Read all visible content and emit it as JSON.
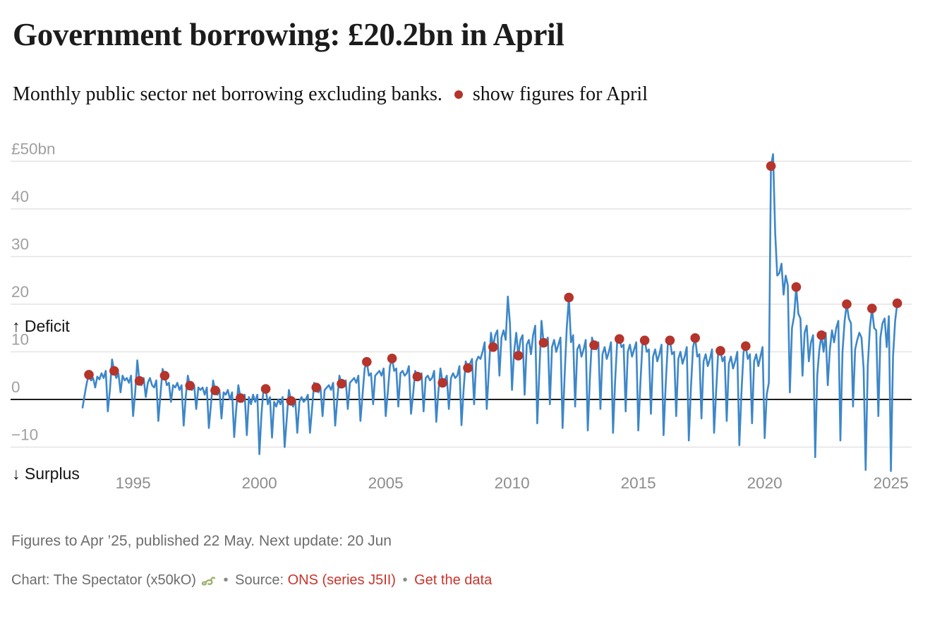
{
  "header": {
    "title": "Government borrowing: £20.2bn in April",
    "subtitle": "Monthly public sector net borrowing excluding banks.",
    "legend_dot_label": "show figures for April"
  },
  "chart_data": {
    "type": "line",
    "title": "Government borrowing: £20.2bn in April",
    "unit": "£bn",
    "grid": "horizontal",
    "legend_position": "in-subtitle",
    "xlim": [
      1993.0,
      2025.4
    ],
    "ylim": [
      -16,
      52
    ],
    "x_ticks": [
      1995,
      2000,
      2005,
      2010,
      2015,
      2020,
      2025
    ],
    "y_ticks": [
      {
        "value": 50,
        "label": "£50bn"
      },
      {
        "value": 40,
        "label": "40"
      },
      {
        "value": 30,
        "label": "30"
      },
      {
        "value": 20,
        "label": "20"
      },
      {
        "value": 10,
        "label": "10"
      },
      {
        "value": 0,
        "label": "0"
      },
      {
        "value": -10,
        "label": "−10"
      }
    ],
    "annotations": {
      "deficit": "↑ Deficit",
      "surplus": "↓ Surplus"
    },
    "monthly_series": {
      "name": "Monthly public sector net borrowing ex banks (£bn)",
      "start_year": 1993,
      "start_month": 1,
      "values": [
        -1.7,
        1.0,
        3.5,
        5.2,
        4.0,
        4.5,
        2.5,
        4.8,
        4.2,
        5.5,
        4.5,
        6.0,
        -2.5,
        2.0,
        8.4,
        6.0,
        4.5,
        5.5,
        1.5,
        5.0,
        4.0,
        4.5,
        3.5,
        5.0,
        -3.5,
        1.5,
        8.2,
        3.9,
        3.0,
        4.5,
        0.5,
        3.5,
        4.5,
        3.0,
        2.5,
        4.0,
        -4.5,
        1.0,
        6.4,
        5.0,
        3.0,
        3.5,
        -0.5,
        3.0,
        2.5,
        3.5,
        2.0,
        3.0,
        -5.5,
        0.5,
        5.0,
        2.9,
        2.0,
        3.0,
        -2.0,
        2.5,
        2.0,
        2.5,
        1.0,
        2.5,
        -6.0,
        -1.0,
        4.0,
        1.9,
        1.0,
        2.0,
        -4.0,
        1.5,
        1.0,
        2.0,
        0.0,
        1.5,
        -7.9,
        -2.0,
        3.0,
        0.3,
        -0.5,
        1.0,
        -7.5,
        0.5,
        -1.0,
        1.0,
        -0.5,
        1.0,
        -11.5,
        -3.0,
        2.5,
        2.2,
        -1.0,
        0.5,
        -8.0,
        -0.5,
        -1.5,
        0.0,
        -1.0,
        0.5,
        -10.0,
        -4.0,
        2.0,
        -0.3,
        -1.5,
        0.0,
        -7.0,
        -0.5,
        0.5,
        -0.5,
        0.0,
        1.0,
        -7.0,
        -2.0,
        3.5,
        2.5,
        1.5,
        2.5,
        -3.5,
        2.0,
        2.5,
        3.0,
        2.0,
        3.5,
        -5.5,
        0.0,
        5.0,
        3.3,
        3.0,
        4.0,
        -2.0,
        3.5,
        4.0,
        4.5,
        3.5,
        5.0,
        -4.5,
        1.0,
        6.5,
        7.9,
        5.0,
        5.5,
        -1.0,
        5.0,
        5.5,
        6.0,
        5.0,
        6.5,
        -3.5,
        1.5,
        7.0,
        8.6,
        6.0,
        6.5,
        -1.5,
        5.5,
        6.0,
        5.0,
        5.5,
        7.0,
        -3.0,
        1.0,
        6.0,
        4.8,
        4.5,
        5.5,
        -2.5,
        4.5,
        5.0,
        4.0,
        4.5,
        6.0,
        -4.7,
        1.5,
        6.5,
        3.5,
        4.0,
        5.0,
        -2.0,
        4.5,
        5.5,
        4.5,
        5.0,
        7.0,
        -5.4,
        2.0,
        8.0,
        6.6,
        7.5,
        8.5,
        -1.0,
        8.0,
        9.0,
        8.5,
        10.0,
        12.0,
        -2.0,
        6.0,
        14.0,
        11.0,
        13.5,
        14.5,
        5.0,
        13.0,
        14.5,
        12.5,
        21.6,
        16.0,
        2.0,
        10.0,
        14.0,
        9.2,
        12.5,
        13.5,
        1.0,
        11.5,
        12.5,
        9.5,
        13.5,
        15.5,
        -5.0,
        6.0,
        16.5,
        11.9,
        12.0,
        13.0,
        -1.0,
        11.0,
        12.5,
        10.0,
        11.5,
        13.0,
        -6.0,
        5.0,
        15.0,
        21.4,
        12.0,
        13.5,
        -1.5,
        10.5,
        11.5,
        9.0,
        10.5,
        12.5,
        -6.5,
        4.5,
        13.0,
        11.4,
        10.5,
        12.0,
        -2.0,
        9.5,
        11.0,
        8.5,
        10.0,
        12.0,
        -7.0,
        4.0,
        12.5,
        12.7,
        11.0,
        11.5,
        -2.5,
        10.0,
        11.5,
        9.0,
        10.5,
        12.0,
        -6.5,
        3.5,
        12.0,
        12.4,
        10.0,
        10.5,
        -3.0,
        9.0,
        10.5,
        8.0,
        9.5,
        11.5,
        -7.5,
        3.0,
        11.5,
        12.4,
        9.5,
        10.0,
        -3.5,
        8.5,
        10.0,
        7.5,
        9.0,
        11.0,
        -8.6,
        2.5,
        11.0,
        12.9,
        9.0,
        9.5,
        -4.0,
        8.0,
        9.5,
        7.0,
        8.5,
        10.5,
        -7.0,
        2.0,
        10.5,
        10.2,
        8.0,
        9.0,
        -4.5,
        7.5,
        9.0,
        6.5,
        8.0,
        10.0,
        -9.6,
        1.5,
        10.0,
        11.2,
        8.5,
        9.5,
        -5.0,
        8.0,
        9.5,
        7.0,
        9.0,
        11.0,
        -8.1,
        1.0,
        3.5,
        49.0,
        51.5,
        35.0,
        26.0,
        26.5,
        28.5,
        22.0,
        26.0,
        24.0,
        1.5,
        15.0,
        17.5,
        23.6,
        18.0,
        17.0,
        5.0,
        14.0,
        15.5,
        8.0,
        12.0,
        13.5,
        -12.1,
        5.0,
        10.5,
        13.5,
        10.0,
        14.0,
        3.0,
        10.5,
        14.5,
        12.0,
        15.0,
        16.5,
        -8.6,
        10.0,
        16.5,
        20.0,
        17.0,
        16.0,
        -1.5,
        10.5,
        12.5,
        14.0,
        13.0,
        6.5,
        -14.8,
        7.0,
        15.0,
        19.1,
        15.0,
        14.5,
        -3.5,
        13.0,
        16.0,
        17.0,
        11.0,
        17.5,
        -15.0,
        9.0,
        16.5,
        20.2
      ]
    },
    "april_series": {
      "name": "April figures",
      "years": [
        1993,
        1994,
        1995,
        1996,
        1997,
        1998,
        1999,
        2000,
        2001,
        2002,
        2003,
        2004,
        2005,
        2006,
        2007,
        2008,
        2009,
        2010,
        2011,
        2012,
        2013,
        2014,
        2015,
        2016,
        2017,
        2018,
        2019,
        2020,
        2021,
        2022,
        2023,
        2024,
        2025
      ],
      "values": [
        5.2,
        6.0,
        3.9,
        5.0,
        2.9,
        1.9,
        0.3,
        2.2,
        -0.3,
        2.5,
        3.3,
        7.9,
        8.6,
        4.8,
        3.5,
        6.6,
        11.0,
        9.2,
        11.9,
        21.4,
        11.4,
        12.7,
        12.4,
        12.4,
        12.9,
        10.2,
        11.2,
        49.0,
        23.6,
        13.5,
        20.0,
        19.1,
        20.2
      ]
    },
    "colors": {
      "line": "#3d87c9",
      "april_dot": "#b5342b",
      "zero_line": "#1d1d1b",
      "gridline": "#e4e4e4",
      "y_tick_label": "#a0a0a0",
      "x_tick_label": "#8d8d8d"
    }
  },
  "footer": {
    "notes": "Figures to Apr ’25, published 22 May. Next update: 20 Jun",
    "byline_prefix": "Chart: The Spectator (x50kO)",
    "byline_emoji": "snake",
    "separator": "•",
    "source_label": "Source:",
    "source_link_label": "ONS (series J5II)",
    "data_link_label": "Get the data",
    "link_color": "#c8352c",
    "text_color": "#6d6d6d"
  }
}
